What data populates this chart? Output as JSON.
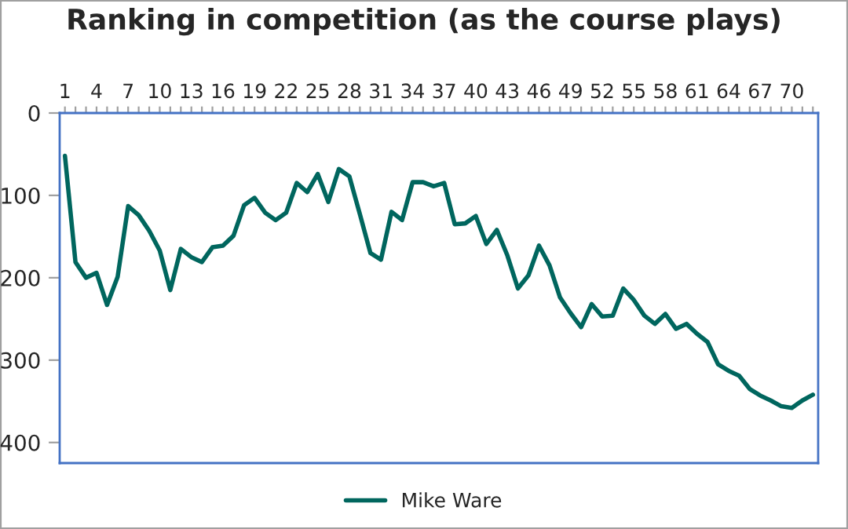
{
  "chart_data": {
    "type": "line",
    "title": "Ranking in competition (as the course plays)",
    "categories": [
      "1",
      null,
      null,
      "4",
      null,
      null,
      "7",
      null,
      null,
      "10",
      null,
      null,
      "13",
      null,
      null,
      "16",
      null,
      null,
      "19",
      null,
      null,
      "22",
      null,
      null,
      "25",
      null,
      null,
      "28",
      null,
      null,
      "31",
      null,
      null,
      "34",
      null,
      null,
      "37",
      null,
      null,
      "40",
      null,
      null,
      "43",
      null,
      null,
      "46",
      null,
      null,
      "49",
      null,
      null,
      "52",
      null,
      null,
      "55",
      null,
      null,
      "58",
      null,
      null,
      "61",
      null,
      null,
      "64",
      null,
      null,
      "67",
      null,
      null,
      "70",
      null,
      null
    ],
    "series": [
      {
        "name": "Mike Ware",
        "color": "#00665e",
        "values": [
          52,
          181,
          200,
          194,
          233,
          199,
          113,
          124,
          143,
          167,
          215,
          165,
          175,
          181,
          163,
          161,
          149,
          112,
          103,
          121,
          130,
          121,
          85,
          96,
          74,
          108,
          68,
          77,
          123,
          170,
          178,
          120,
          130,
          84,
          84,
          89,
          85,
          135,
          134,
          125,
          159,
          142,
          173,
          213,
          197,
          161,
          185,
          224,
          243,
          260,
          232,
          247,
          246,
          213,
          227,
          246,
          256,
          244,
          262,
          256,
          268,
          278,
          305,
          313,
          319,
          335,
          343,
          349,
          356,
          358,
          349,
          342
        ]
      }
    ],
    "ylim": [
      425,
      0
    ],
    "yticks": [
      0,
      100,
      200,
      300,
      400
    ],
    "grid": false,
    "legend": "bottom",
    "marker": "none",
    "line_style": "solid"
  }
}
